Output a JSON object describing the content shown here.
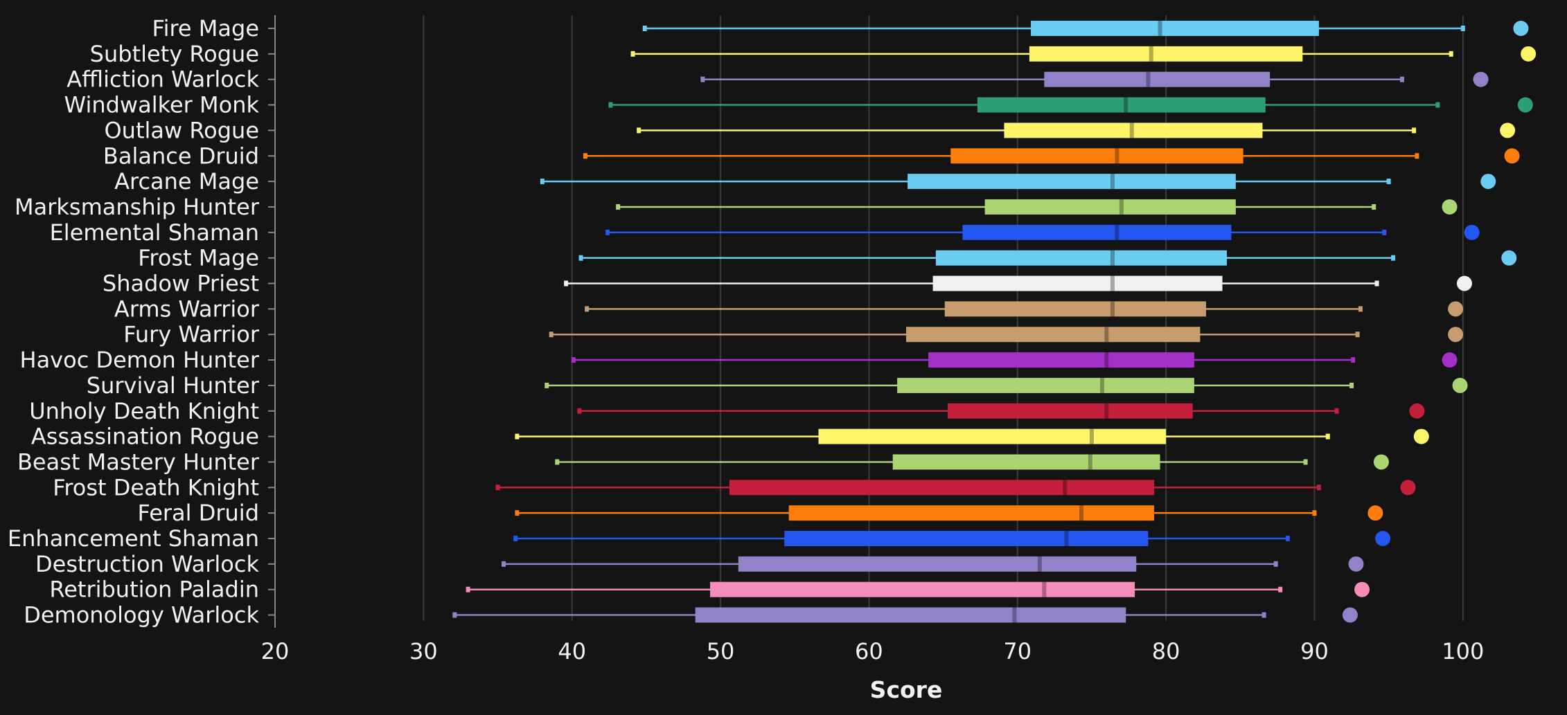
{
  "chart_data": {
    "type": "box",
    "xlabel": "Score",
    "ylabel": "",
    "xlim": [
      20,
      105
    ],
    "xticks": [
      20,
      30,
      40,
      50,
      60,
      70,
      80,
      90,
      100
    ],
    "grid": "vertical",
    "categories": [
      "Fire Mage",
      "Subtlety Rogue",
      "Affliction Warlock",
      "Windwalker Monk",
      "Outlaw Rogue",
      "Balance Druid",
      "Arcane Mage",
      "Marksmanship Hunter",
      "Elemental Shaman",
      "Frost Mage",
      "Shadow Priest",
      "Arms Warrior",
      "Fury Warrior",
      "Havoc Demon Hunter",
      "Survival Hunter",
      "Unholy Death Knight",
      "Assassination Rogue",
      "Beast Mastery Hunter",
      "Frost Death Knight",
      "Feral Druid",
      "Enhancement Shaman",
      "Destruction Warlock",
      "Retribution Paladin",
      "Demonology Warlock"
    ],
    "colors": [
      "#69ccf0",
      "#fff569",
      "#9482c9",
      "#2e9e74",
      "#fff569",
      "#ff7d0a",
      "#69ccf0",
      "#abd473",
      "#2456f0",
      "#69ccf0",
      "#f0f0f0",
      "#c79c6e",
      "#c79c6e",
      "#a330c9",
      "#abd473",
      "#c41f3b",
      "#fff569",
      "#abd473",
      "#c41f3b",
      "#ff7d0a",
      "#2456f0",
      "#9482c9",
      "#f58cba",
      "#9482c9"
    ],
    "whisker_low": [
      44.9,
      44.1,
      48.8,
      42.6,
      44.5,
      40.9,
      38.0,
      43.1,
      42.4,
      40.6,
      39.6,
      41.0,
      38.6,
      40.1,
      38.3,
      40.5,
      36.3,
      39.0,
      35.0,
      36.3,
      36.2,
      35.4,
      33.0,
      32.1
    ],
    "q1": [
      70.9,
      70.8,
      71.8,
      67.3,
      69.1,
      65.5,
      62.6,
      67.8,
      66.3,
      64.5,
      64.3,
      65.1,
      62.5,
      64.0,
      61.9,
      65.3,
      56.6,
      61.6,
      50.6,
      54.6,
      54.3,
      51.2,
      49.3,
      48.3
    ],
    "median": [
      79.6,
      79.0,
      78.8,
      77.3,
      77.7,
      76.7,
      76.4,
      77.0,
      76.7,
      76.4,
      76.4,
      76.4,
      76.0,
      76.0,
      75.7,
      76.0,
      75.0,
      74.9,
      73.2,
      74.3,
      73.3,
      71.5,
      71.8,
      69.8
    ],
    "q3": [
      90.3,
      89.2,
      87.0,
      86.7,
      86.5,
      85.2,
      84.7,
      84.7,
      84.4,
      84.1,
      83.8,
      82.7,
      82.3,
      81.9,
      81.9,
      81.8,
      80.0,
      79.6,
      79.2,
      79.2,
      78.8,
      78.0,
      77.9,
      77.3
    ],
    "whisker_high": [
      100.0,
      99.2,
      95.9,
      98.3,
      96.7,
      96.9,
      95.0,
      94.0,
      94.7,
      95.3,
      94.2,
      93.1,
      92.9,
      92.6,
      92.5,
      91.5,
      90.9,
      89.4,
      90.3,
      90.0,
      88.2,
      87.4,
      87.7,
      86.6
    ],
    "max_point": [
      103.9,
      104.4,
      101.2,
      104.2,
      103.0,
      103.3,
      101.7,
      99.1,
      100.6,
      103.1,
      100.1,
      99.5,
      99.5,
      99.1,
      99.8,
      96.9,
      97.2,
      94.5,
      96.3,
      94.1,
      94.6,
      92.8,
      93.2,
      92.4
    ]
  }
}
